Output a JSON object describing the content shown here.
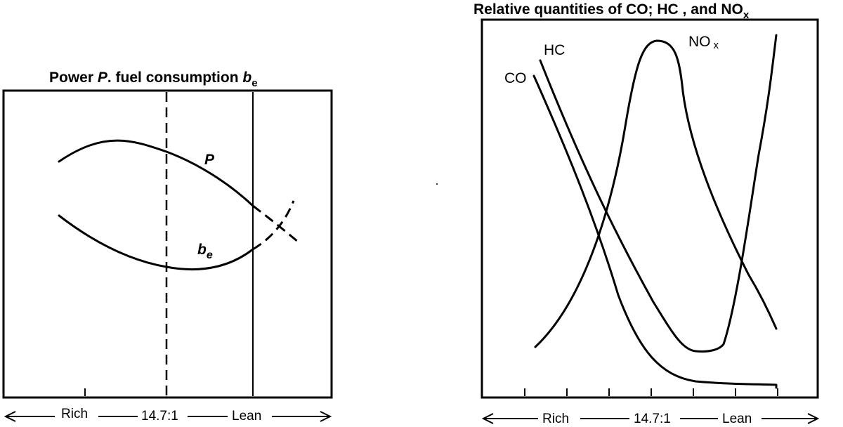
{
  "left_panel": {
    "title_main": "Power ",
    "title_p": "P",
    "title_rest": ". fuel consumption ",
    "title_b": "b",
    "title_sub": "e",
    "curve_p_label": "P",
    "curve_be_label": "b",
    "curve_be_sub": "e",
    "axis": {
      "rich": "Rich",
      "stoich": "14.7:1",
      "lean": "Lean"
    }
  },
  "right_panel": {
    "title_main": "Relative quantities of CO;  HC , and NO",
    "title_sub": "x",
    "curve_co_label": "CO",
    "curve_hc_label": "HC",
    "curve_nox_label": "NO",
    "curve_nox_sub": "x",
    "axis": {
      "rich": "Rich",
      "stoich": "14.7:1",
      "lean": "Lean"
    }
  },
  "colors": {
    "ink": "#000000",
    "paper": "#ffffff"
  }
}
